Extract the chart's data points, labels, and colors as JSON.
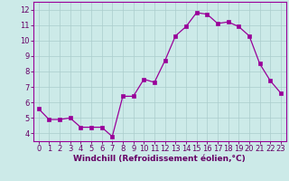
{
  "x": [
    0,
    1,
    2,
    3,
    4,
    5,
    6,
    7,
    8,
    9,
    10,
    11,
    12,
    13,
    14,
    15,
    16,
    17,
    18,
    19,
    20,
    21,
    22,
    23
  ],
  "y": [
    5.6,
    4.9,
    4.9,
    5.0,
    4.4,
    4.4,
    4.4,
    3.8,
    6.4,
    6.4,
    7.5,
    7.3,
    8.7,
    10.3,
    10.9,
    11.8,
    11.7,
    11.1,
    11.2,
    10.9,
    10.3,
    8.5,
    7.4,
    6.6
  ],
  "xlabel": "Windchill (Refroidissement éolien,°C)",
  "xtick_labels": [
    "0",
    "1",
    "2",
    "3",
    "4",
    "5",
    "6",
    "7",
    "8",
    "9",
    "10",
    "11",
    "12",
    "13",
    "14",
    "15",
    "16",
    "17",
    "18",
    "19",
    "20",
    "21",
    "22",
    "23"
  ],
  "ytick_labels": [
    "4",
    "5",
    "6",
    "7",
    "8",
    "9",
    "10",
    "11",
    "12"
  ],
  "yticks": [
    4,
    5,
    6,
    7,
    8,
    9,
    10,
    11,
    12
  ],
  "ylim": [
    3.5,
    12.5
  ],
  "xlim": [
    -0.5,
    23.5
  ],
  "line_color": "#990099",
  "marker": "s",
  "marker_size": 2.5,
  "bg_color": "#cceae8",
  "grid_color": "#aacccc",
  "xlabel_fontsize": 6.5,
  "tick_fontsize": 6.0,
  "xlabel_color": "#660066",
  "tick_color": "#660066"
}
